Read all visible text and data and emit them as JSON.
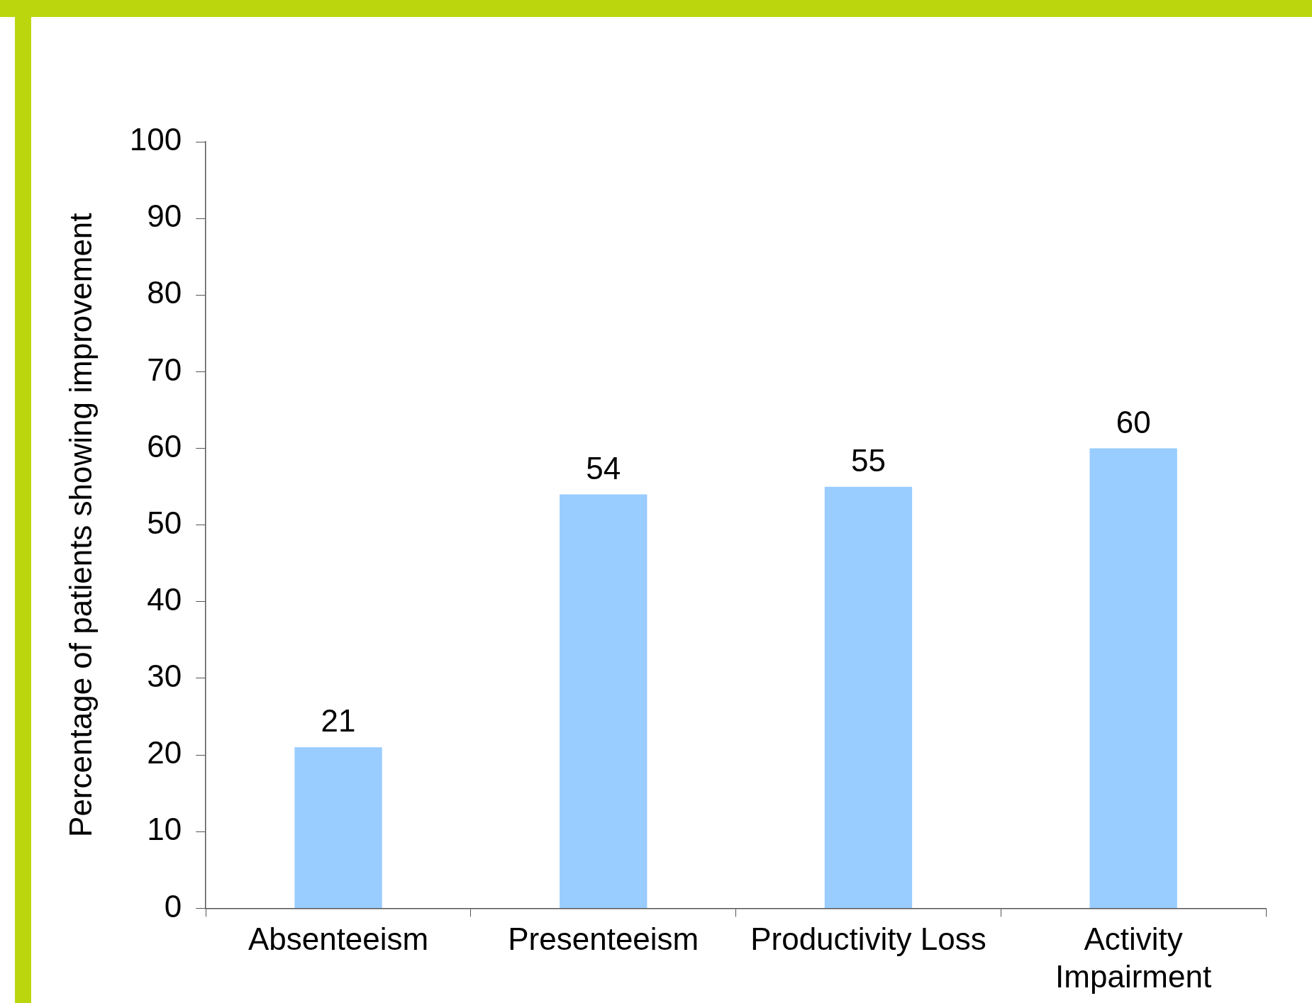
{
  "chart_data": {
    "type": "bar",
    "ylabel": "Percentage of patients showing improvement",
    "categories": [
      "Absenteeism",
      "Presenteeism",
      "Productivity Loss",
      "Activity Impairment"
    ],
    "values": [
      21,
      54,
      55,
      60
    ],
    "color": "#99ccff",
    "ylim": [
      0,
      100
    ],
    "yticks": [
      0,
      10,
      20,
      30,
      40,
      50,
      60,
      70,
      80,
      90,
      100
    ],
    "data_labels": true
  }
}
